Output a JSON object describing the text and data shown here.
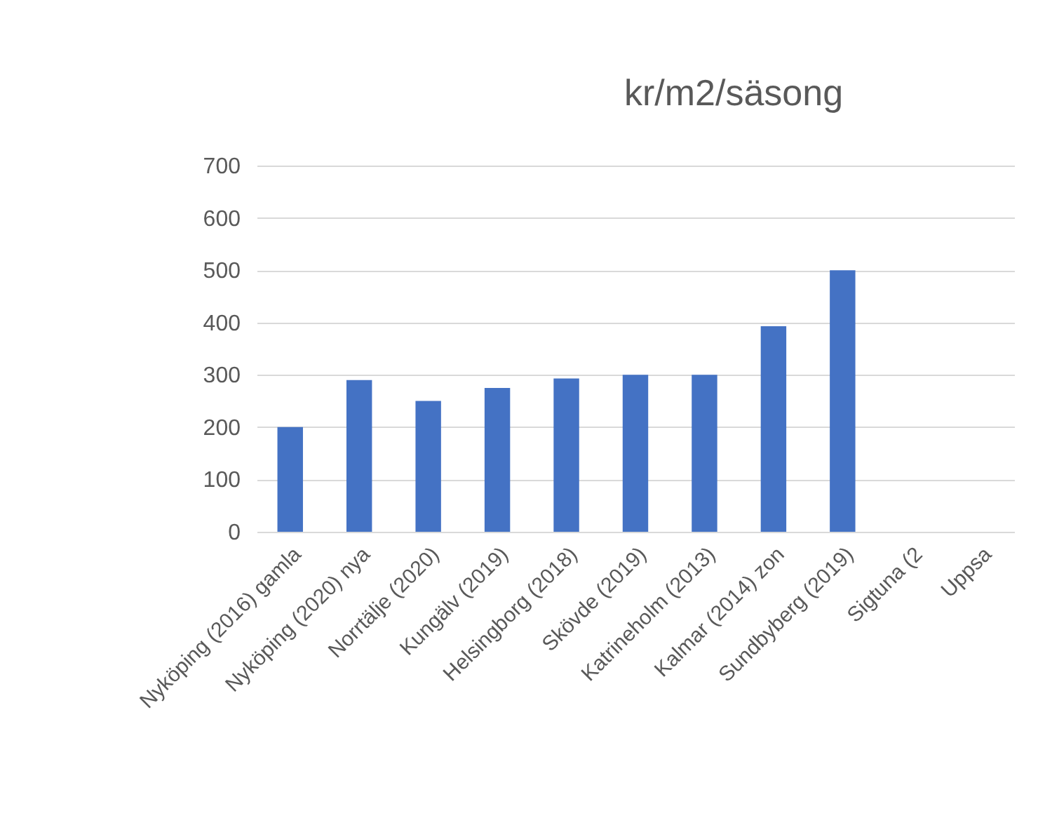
{
  "chart_data": {
    "type": "bar",
    "title": "kr/m2/säsong",
    "categories": [
      "Nyköping (2016) gamla",
      "Nyköping (2020) nya",
      "Norrtälje (2020)",
      "Kungälv (2019)",
      "Helsingborg (2018)",
      "Skövde (2019)",
      "Katrineholm (2013)",
      "Kalmar (2014) zon",
      "Sundbyberg (2019)",
      "Sigtuna (2",
      "Uppsa"
    ],
    "series": [
      {
        "color": "#4472c4",
        "values": [
          200,
          290,
          250,
          275,
          293,
          300,
          300,
          393,
          500,
          null,
          null
        ]
      }
    ],
    "ylim": [
      0,
      700
    ],
    "yticks": [
      0,
      100,
      200,
      300,
      400,
      500,
      600,
      700
    ],
    "grid": "y"
  }
}
